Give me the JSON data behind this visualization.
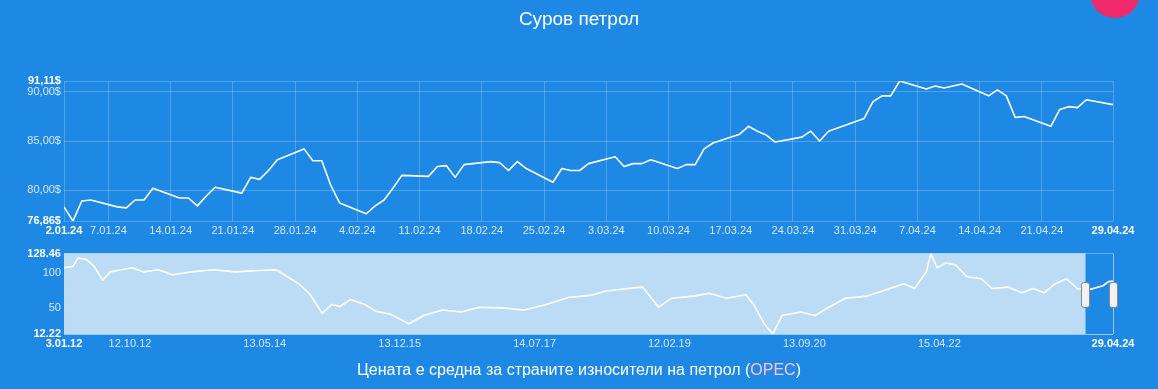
{
  "chart_data": [
    {
      "type": "line",
      "title": "Суров петрол",
      "x": [
        "--01-02",
        "--01-03",
        "--01-04",
        "--01-05",
        "--01-08",
        "--01-09",
        "--01-10",
        "--01-11",
        "--01-12",
        "--01-15",
        "--01-16",
        "--01-17",
        "--01-18",
        "--01-19",
        "--01-22",
        "--01-23",
        "--01-24",
        "--01-25",
        "--01-26",
        "--01-29",
        "--01-30",
        "--01-31",
        "--02-01",
        "--02-02",
        "--02-05",
        "--02-06",
        "--02-07",
        "--02-08",
        "--02-09",
        "--02-12",
        "--02-13",
        "--02-14",
        "--02-15",
        "--02-16",
        "--02-19",
        "--02-20",
        "--02-21",
        "--02-22",
        "--02-23",
        "--02-26",
        "--02-27",
        "--02-28",
        "--02-29",
        "--03-01",
        "--03-04",
        "--03-05",
        "--03-06",
        "--03-07",
        "--03-08",
        "--03-11",
        "--03-12",
        "--03-13",
        "--03-14",
        "--03-15",
        "--03-18",
        "--03-19",
        "--03-20",
        "--03-21",
        "--03-22",
        "--03-25",
        "--03-26",
        "--03-27",
        "--03-28",
        "--04-01",
        "--04-02",
        "--04-03",
        "--04-04",
        "--04-05",
        "--04-08",
        "--04-09",
        "--04-10",
        "--04-11",
        "--04-12",
        "--04-15",
        "--04-16",
        "--04-17",
        "--04-18",
        "--04-19",
        "--04-22",
        "--04-23",
        "--04-24",
        "--04-25",
        "--04-26",
        "--04-29"
      ],
      "values": [
        78.3,
        76.86,
        78.9,
        79.0,
        78.3,
        78.2,
        79.0,
        79.0,
        80.2,
        79.2,
        79.2,
        78.4,
        79.4,
        80.3,
        79.7,
        81.3,
        81.1,
        82.0,
        83.1,
        84.2,
        83.0,
        83.0,
        80.5,
        78.7,
        77.6,
        78.4,
        79.0,
        80.2,
        81.5,
        81.4,
        82.4,
        82.5,
        81.3,
        82.6,
        82.9,
        82.8,
        82.0,
        82.9,
        82.2,
        80.8,
        82.2,
        82.0,
        82.0,
        82.7,
        83.4,
        82.4,
        82.7,
        82.7,
        83.1,
        82.2,
        82.6,
        82.6,
        84.2,
        84.8,
        85.7,
        86.5,
        86.0,
        85.6,
        84.9,
        85.4,
        86.0,
        85.0,
        86.0,
        87.3,
        89.0,
        89.6,
        89.6,
        91.11,
        90.3,
        90.6,
        90.4,
        90.6,
        90.8,
        89.6,
        90.2,
        89.6,
        87.4,
        87.5,
        86.5,
        88.2,
        88.5,
        88.4,
        89.2,
        88.7
      ],
      "color": "#ffffff",
      "xlim": [
        "--01-02",
        "--04-29"
      ],
      "xticks": [
        {
          "value": "--01-02",
          "label": "2.01.24"
        },
        {
          "value": "--01-07",
          "label": "7.01.24"
        },
        {
          "value": "--01-14",
          "label": "14.01.24"
        },
        {
          "value": "--01-21",
          "label": "21.01.24"
        },
        {
          "value": "--01-28",
          "label": "28.01.24"
        },
        {
          "value": "--02-04",
          "label": "4.02.24"
        },
        {
          "value": "--02-11",
          "label": "11.02.24"
        },
        {
          "value": "--02-18",
          "label": "18.02.24"
        },
        {
          "value": "--02-25",
          "label": "25.02.24"
        },
        {
          "value": "--03-03",
          "label": "3.03.24"
        },
        {
          "value": "--03-10",
          "label": "10.03.24"
        },
        {
          "value": "--03-17",
          "label": "17.03.24"
        },
        {
          "value": "--03-24",
          "label": "24.03.24"
        },
        {
          "value": "--03-31",
          "label": "31.03.24"
        },
        {
          "value": "--04-07",
          "label": "7.04.24"
        },
        {
          "value": "--04-14",
          "label": "14.04.24"
        },
        {
          "value": "--04-21",
          "label": "21.04.24"
        },
        {
          "value": "--04-29",
          "label": "29.04.24"
        }
      ],
      "ylim": [
        76.86,
        91.11
      ],
      "yticks": [
        {
          "value": 76.86,
          "label": "76,86$"
        },
        {
          "value": 80,
          "label": "80,00$"
        },
        {
          "value": 85,
          "label": "85,00$"
        },
        {
          "value": 90,
          "label": "90,00$"
        },
        {
          "value": 91.11,
          "label": "91,11$"
        }
      ],
      "grid": true,
      "marker": "none",
      "line_style": "solid"
    },
    {
      "type": "line",
      "x": [
        "2012-01-03",
        "2012-02-10",
        "2012-03-03",
        "2012-04-08",
        "2012-05-11",
        "2012-06-17",
        "2012-07-19",
        "2012-09-05",
        "2012-10-23",
        "2012-12-10",
        "2013-02-10",
        "2013-04-13",
        "2013-07-02",
        "2013-10-05",
        "2014-01-08",
        "2014-04-13",
        "2014-07-02",
        "2014-08-19",
        "2014-10-05",
        "2014-11-22",
        "2015-01-15",
        "2015-02-25",
        "2015-04-01",
        "2015-05-15",
        "2015-07-16",
        "2015-09-02",
        "2015-11-03",
        "2016-01-22",
        "2016-03-25",
        "2016-06-14",
        "2016-09-02",
        "2016-11-18",
        "2017-02-21",
        "2017-05-30",
        "2017-09-02",
        "2017-12-06",
        "2018-03-11",
        "2018-05-12",
        "2018-08-15",
        "2018-10-20",
        "2018-12-28",
        "2019-02-21",
        "2019-05-26",
        "2019-07-31",
        "2019-10-16",
        "2020-01-06",
        "2020-02-10",
        "2020-03-25",
        "2020-04-30",
        "2020-06-10",
        "2020-08-29",
        "2020-10-30",
        "2020-12-17",
        "2021-03-08",
        "2021-06-10",
        "2021-08-11",
        "2021-11-14",
        "2021-12-30",
        "2022-02-18",
        "2022-03-10",
        "2022-04-05",
        "2022-05-15",
        "2022-06-24",
        "2022-08-11",
        "2022-10-12",
        "2022-11-28",
        "2023-02-03",
        "2023-04-05",
        "2023-05-22",
        "2023-07-09",
        "2023-08-26",
        "2023-10-12",
        "2023-11-28",
        "2024-01-15",
        "2024-03-17",
        "2024-04-10",
        "2024-04-29"
      ],
      "values": [
        108,
        110,
        122,
        120,
        110,
        90,
        102,
        105,
        108,
        102,
        105,
        98,
        102,
        105,
        102,
        104,
        105,
        95,
        85,
        70,
        42,
        55,
        52,
        62,
        55,
        45,
        41,
        27,
        39,
        47,
        44,
        51,
        50,
        47,
        55,
        65,
        68,
        74,
        78,
        80,
        51,
        64,
        67,
        71,
        64,
        69,
        54,
        27,
        12.22,
        39,
        44,
        39,
        49,
        64,
        67,
        74,
        85,
        78,
        102,
        128.46,
        108,
        115,
        112,
        95,
        92,
        78,
        80,
        72,
        78,
        72,
        85,
        92,
        78,
        76,
        82,
        88,
        88.7
      ],
      "color": "#ffffff",
      "xlim": [
        "2012-01-03",
        "2024-04-29"
      ],
      "xticks": [
        {
          "value": "2012-01-03",
          "label": "3.01.12"
        },
        {
          "value": "2012-10-12",
          "label": "12.10.12"
        },
        {
          "value": "2014-05-13",
          "label": "13.05.14"
        },
        {
          "value": "2015-12-13",
          "label": "13.12.15"
        },
        {
          "value": "2017-07-14",
          "label": "14.07.17"
        },
        {
          "value": "2019-02-12",
          "label": "12.02.19"
        },
        {
          "value": "2020-09-13",
          "label": "13.09.20"
        },
        {
          "value": "2022-04-15",
          "label": "15.04.22"
        },
        {
          "value": "2024-04-29",
          "label": "29.04.24"
        }
      ],
      "ylim": [
        12.22,
        128.46
      ],
      "yticks": [
        12.22,
        50,
        100,
        128.46
      ],
      "bands": [
        {
          "axis": "x",
          "from": "2024-01-02",
          "to": "2024-04-29",
          "color": "#1e88e5"
        }
      ],
      "grid": true,
      "marker": "none",
      "line_style": "solid",
      "annotations": [
        "Цената е средна за страните износители на петрол (OPEC)"
      ]
    }
  ]
}
